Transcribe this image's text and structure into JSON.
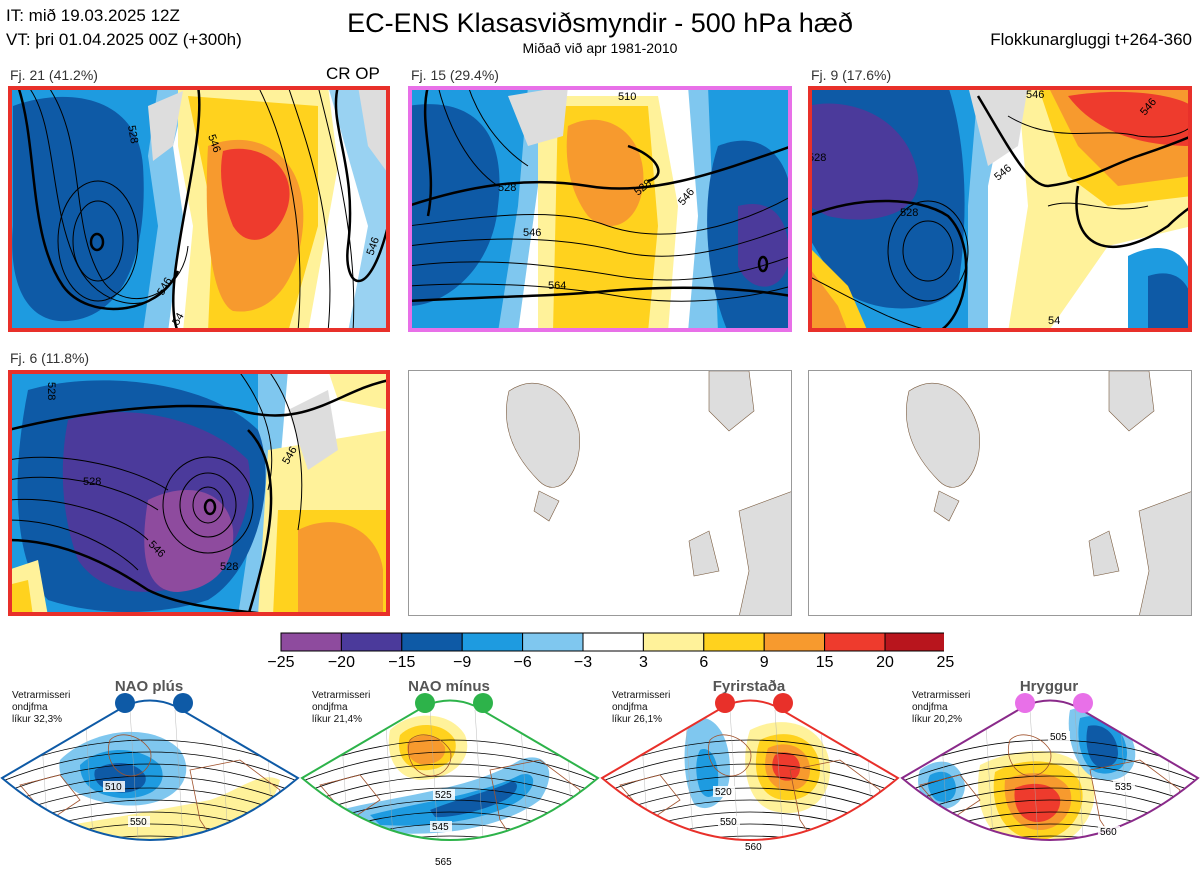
{
  "header": {
    "it_line": "IT: mið 19.03.2025 12Z",
    "vt_line": "VT: þri 01.04.2025 00Z  (+300h)",
    "title": "EC-ENS Klasasviðsmyndir - 500 hPa hæð",
    "subtitle": "Miðað við apr 1981-2010",
    "window": "Flokkunargluggi t+264-360"
  },
  "panels": [
    {
      "label": "Fj. 21 (41.2%)",
      "extra": "CR OP",
      "frame_color": "#e8302a",
      "contours": [
        "528",
        "546",
        "546",
        "546",
        "54"
      ]
    },
    {
      "label": "Fj. 15 (29.4%)",
      "extra": "",
      "frame_color": "#e870e8",
      "contours": [
        "510",
        "528",
        "528",
        "546",
        "546",
        "564"
      ]
    },
    {
      "label": "Fj. 9 (17.6%)",
      "extra": "",
      "frame_color": "#e8302a",
      "contours": [
        "528",
        "528",
        "546",
        "546",
        "546",
        "54"
      ]
    },
    {
      "label": "Fj. 6 (11.8%)",
      "extra": "",
      "frame_color": "#e8302a",
      "contours": [
        "528",
        "528",
        "546",
        "546",
        "528"
      ]
    }
  ],
  "colorbar": {
    "colors": [
      "#8e4b9e",
      "#4b3a9b",
      "#0e5aa6",
      "#1e9be0",
      "#7fc7ef",
      "#ffffff",
      "#fff29a",
      "#ffd21e",
      "#f79a2e",
      "#ee3b2d",
      "#b8151d"
    ],
    "ticks": [
      "−25",
      "−20",
      "−15",
      "−9",
      "−6",
      "−3",
      "3",
      "6",
      "9",
      "15",
      "20",
      "25"
    ]
  },
  "regimes": [
    {
      "name": "NAO plús",
      "info": [
        "Vetrarmisseri",
        "ondjfma",
        "líkur 32,3%"
      ],
      "color": "#0e5aa6",
      "frame": "#0e5aa6",
      "contours": [
        "510",
        "550"
      ]
    },
    {
      "name": "NAO mínus",
      "info": [
        "Vetrarmisseri",
        "ondjfma",
        "líkur 21,4%"
      ],
      "color": "#2db34a",
      "frame": "#2db34a",
      "contours": [
        "525",
        "545",
        "565"
      ]
    },
    {
      "name": "Fyrirstaða",
      "info": [
        "Vetrarmisseri",
        "ondjfma",
        "líkur 26,1%"
      ],
      "color": "#e8302a",
      "frame": "#e8302a",
      "contours": [
        "520",
        "550",
        "560"
      ]
    },
    {
      "name": "Hryggur",
      "info": [
        "Vetrarmisseri",
        "ondjfma",
        "líkur 20,2%"
      ],
      "color": "#e870e8",
      "frame": "#8a2a8a",
      "contours": [
        "505",
        "535",
        "560"
      ]
    }
  ]
}
